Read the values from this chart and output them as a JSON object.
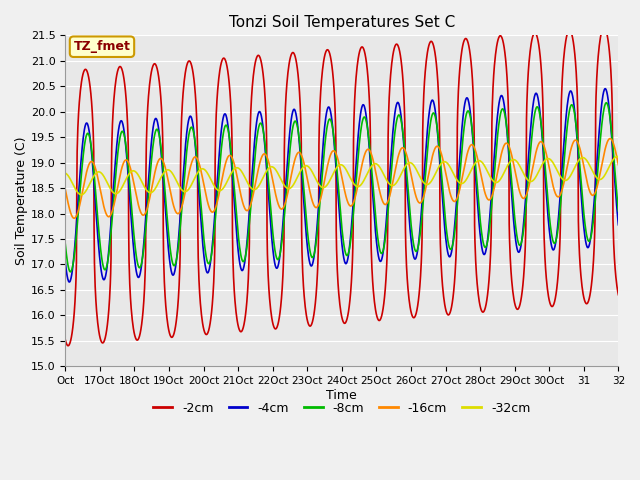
{
  "title": "Tonzi Soil Temperatures Set C",
  "xlabel": "Time",
  "ylabel": "Soil Temperature (C)",
  "ylim": [
    15.0,
    21.5
  ],
  "yticks": [
    15.0,
    15.5,
    16.0,
    16.5,
    17.0,
    17.5,
    18.0,
    18.5,
    19.0,
    19.5,
    20.0,
    20.5,
    21.0,
    21.5
  ],
  "fig_bg": "#f0f0f0",
  "plot_bg": "#e8e8e8",
  "series_order": [
    "-2cm",
    "-4cm",
    "-8cm",
    "-16cm",
    "-32cm"
  ],
  "series": {
    "-2cm": {
      "color": "#cc0000",
      "lw": 1.2,
      "amplitude": 2.7,
      "phase_shift": 0.0,
      "mean_base": 18.1,
      "mean_rise": 0.055,
      "sharpness": 3.0
    },
    "-4cm": {
      "color": "#0000cc",
      "lw": 1.2,
      "amplitude": 1.55,
      "phase_shift": 0.22,
      "mean_base": 18.2,
      "mean_rise": 0.045,
      "sharpness": 1.0
    },
    "-8cm": {
      "color": "#00bb00",
      "lw": 1.2,
      "amplitude": 1.35,
      "phase_shift": 0.42,
      "mean_base": 18.2,
      "mean_rise": 0.04,
      "sharpness": 1.0
    },
    "-16cm": {
      "color": "#ff8800",
      "lw": 1.2,
      "amplitude": 0.55,
      "phase_shift": 1.1,
      "mean_base": 18.45,
      "mean_rise": 0.03,
      "sharpness": 1.0
    },
    "-32cm": {
      "color": "#dddd00",
      "lw": 1.2,
      "amplitude": 0.22,
      "phase_shift": 2.4,
      "mean_base": 18.58,
      "mean_rise": 0.02,
      "sharpness": 1.0
    }
  },
  "legend_labels": [
    "-2cm",
    "-4cm",
    "-8cm",
    "-16cm",
    "-32cm"
  ],
  "legend_colors": [
    "#cc0000",
    "#0000cc",
    "#00bb00",
    "#ff8800",
    "#dddd00"
  ],
  "annotation_text": "TZ_fmet",
  "n_days": 16,
  "points_per_day": 96,
  "figsize": [
    6.4,
    4.8
  ],
  "dpi": 100
}
